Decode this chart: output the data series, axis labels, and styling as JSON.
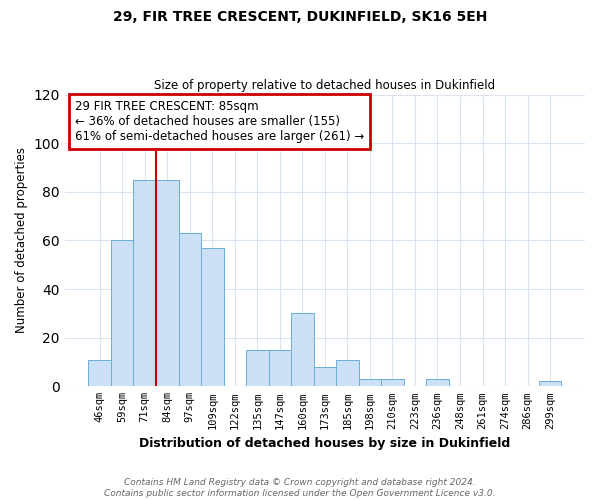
{
  "title": "29, FIR TREE CRESCENT, DUKINFIELD, SK16 5EH",
  "subtitle": "Size of property relative to detached houses in Dukinfield",
  "xlabel": "Distribution of detached houses by size in Dukinfield",
  "ylabel": "Number of detached properties",
  "bar_labels": [
    "46sqm",
    "59sqm",
    "71sqm",
    "84sqm",
    "97sqm",
    "109sqm",
    "122sqm",
    "135sqm",
    "147sqm",
    "160sqm",
    "173sqm",
    "185sqm",
    "198sqm",
    "210sqm",
    "223sqm",
    "236sqm",
    "248sqm",
    "261sqm",
    "274sqm",
    "286sqm",
    "299sqm"
  ],
  "bar_values": [
    11,
    60,
    85,
    85,
    63,
    57,
    0,
    15,
    15,
    30,
    8,
    11,
    3,
    3,
    0,
    3,
    0,
    0,
    0,
    0,
    2
  ],
  "bar_color": "#cce0f5",
  "bar_edge_color": "#6aaed6",
  "vline_x": 2.5,
  "vline_color": "#cc0000",
  "annotation_text": "29 FIR TREE CRESCENT: 85sqm\n← 36% of detached houses are smaller (155)\n61% of semi-detached houses are larger (261) →",
  "annotation_box_edgecolor": "#cc0000",
  "ylim": [
    0,
    120
  ],
  "yticks": [
    0,
    20,
    40,
    60,
    80,
    100,
    120
  ],
  "footer_line1": "Contains HM Land Registry data © Crown copyright and database right 2024.",
  "footer_line2": "Contains public sector information licensed under the Open Government Licence v3.0.",
  "background_color": "#ffffff",
  "grid_color": "#d8e4f0"
}
